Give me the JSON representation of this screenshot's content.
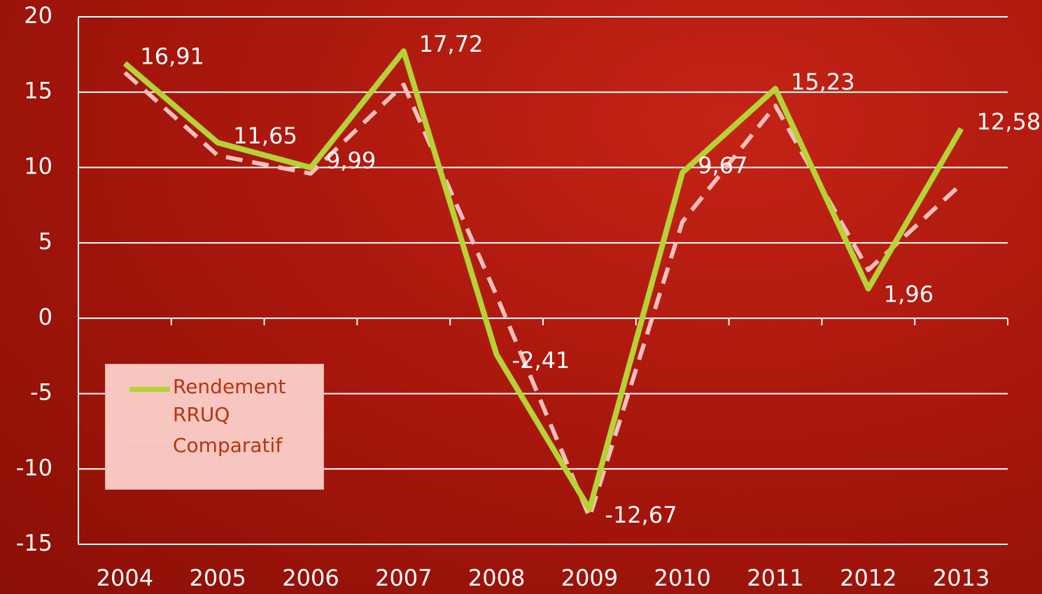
{
  "chart_data": {
    "type": "line",
    "categories": [
      "2004",
      "2005",
      "2006",
      "2007",
      "2008",
      "2009",
      "2010",
      "2011",
      "2012",
      "2013"
    ],
    "series": [
      {
        "name": "Rendement RRUQ",
        "color": "#b5d334",
        "dash": false,
        "values": [
          16.91,
          11.65,
          9.99,
          17.72,
          -2.41,
          -12.67,
          9.67,
          15.23,
          1.96,
          12.58
        ],
        "value_labels": [
          "16,91",
          "11,65",
          "9,99",
          "17,72",
          "-2,41",
          "-12,67",
          "9,67",
          "15,23",
          "1,96",
          "12,58"
        ]
      },
      {
        "name": "Comparatif",
        "color": "#f7c0bc",
        "dash": true,
        "values": [
          16.3,
          10.8,
          9.6,
          15.5,
          1.5,
          -13.2,
          6.4,
          14.1,
          3.2,
          8.9
        ]
      }
    ],
    "ylim": [
      -15,
      20
    ],
    "yticks": [
      -15,
      -10,
      -5,
      0,
      5,
      10,
      15,
      20
    ],
    "grid": true
  }
}
